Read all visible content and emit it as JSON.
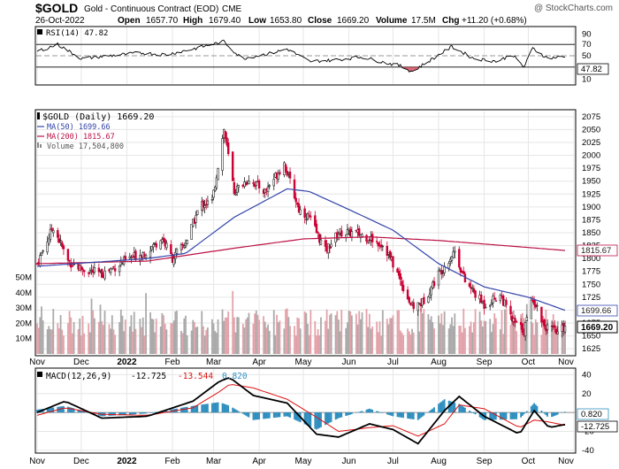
{
  "header": {
    "symbol": "$GOLD",
    "description": "Gold - Continuous Contract (EOD)",
    "exchange": "CME",
    "watermark": "@ StockCharts.com",
    "date": "26-Oct-2022",
    "quote": {
      "open_label": "Open",
      "open": "1657.70",
      "high_label": "High",
      "high": "1679.40",
      "low_label": "Low",
      "low": "1653.80",
      "close_label": "Close",
      "close": "1669.20",
      "volume_label": "Volume",
      "volume": "17.5M",
      "chg_label": "Chg",
      "chg": "+11.20 (+0.68%)"
    }
  },
  "colors": {
    "up": "#222222",
    "down": "#cc0033",
    "ma50": "#3344aa",
    "ma200": "#bb1144",
    "vol_up": "#aaaaaa",
    "vol_down": "#e3a3aa",
    "macd": "#000000",
    "signal": "#dd1111",
    "hist": "#2f8fbf",
    "rsi": "#000000",
    "rsi_fill": "#cc3344"
  },
  "rsi_panel": {
    "legend": "RSI(14) 47.82",
    "value_box": "47.82",
    "ticks": [
      "90",
      "70",
      "50",
      "30",
      "10"
    ]
  },
  "price_panel": {
    "legend_title": "$GOLD (Daily) 1669.20",
    "legend_ma50": "MA(50) 1699.66",
    "legend_ma200": "MA(200) 1815.67",
    "legend_volume": "Volume 17,504,800",
    "price_ticks": [
      "2075",
      "2050",
      "2025",
      "2000",
      "1975",
      "1950",
      "1925",
      "1900",
      "1875",
      "1850",
      "1825",
      "1800",
      "1775",
      "1750",
      "1725",
      "1700",
      "1675",
      "1650",
      "1625"
    ],
    "volume_ticks": [
      "50M",
      "40M",
      "30M",
      "20M",
      "10M"
    ],
    "label_ma200": "1815.67",
    "label_ma50": "1699.66",
    "label_close": "1669.20"
  },
  "macd_panel": {
    "legend_name": "MACD(12,26,9)",
    "legend_macd": "-12.725",
    "legend_signal": "-13.544",
    "legend_hist": "0.820",
    "ticks": [
      "40",
      "20",
      "0",
      "-20",
      "-40"
    ],
    "label_hist": "0.820",
    "label_macd": "-12.725"
  },
  "x_axis": {
    "months": [
      "Nov",
      "Dec",
      "2022",
      "Feb",
      "Mar",
      "Apr",
      "May",
      "Jun",
      "Jul",
      "Aug",
      "Sep",
      "Oct",
      "Nov"
    ]
  },
  "chart_data": {
    "type": "candlestick",
    "title": "$GOLD Gold - Continuous Contract (EOD) CME",
    "date_range": [
      "2021-11-01",
      "2022-10-26"
    ],
    "last_bar": {
      "date": "2022-10-26",
      "open": 1657.7,
      "high": 1679.4,
      "low": 1653.8,
      "close": 1669.2,
      "volume": 17504800,
      "change": 11.2,
      "change_pct": 0.68
    },
    "price_ylim": [
      1615,
      2085
    ],
    "close_path": {
      "dates": [
        "2021-11-01",
        "2021-11-12",
        "2021-11-22",
        "2021-12-01",
        "2021-12-15",
        "2022-01-03",
        "2022-01-15",
        "2022-01-25",
        "2022-02-01",
        "2022-02-10",
        "2022-02-20",
        "2022-02-28",
        "2022-03-08",
        "2022-03-15",
        "2022-03-25",
        "2022-04-05",
        "2022-04-18",
        "2022-04-28",
        "2022-05-05",
        "2022-05-16",
        "2022-05-25",
        "2022-06-05",
        "2022-06-15",
        "2022-06-25",
        "2022-07-05",
        "2022-07-14",
        "2022-07-21",
        "2022-08-01",
        "2022-08-12",
        "2022-08-19",
        "2022-09-01",
        "2022-09-12",
        "2022-09-20",
        "2022-09-28",
        "2022-10-04",
        "2022-10-12",
        "2022-10-21",
        "2022-10-26"
      ],
      "close": [
        1790,
        1862,
        1795,
        1780,
        1770,
        1800,
        1815,
        1840,
        1800,
        1830,
        1905,
        1910,
        2050,
        1930,
        1955,
        1930,
        1985,
        1895,
        1880,
        1815,
        1850,
        1850,
        1840,
        1825,
        1765,
        1705,
        1715,
        1770,
        1815,
        1755,
        1710,
        1730,
        1680,
        1660,
        1725,
        1670,
        1655,
        1669
      ]
    },
    "ma50": {
      "dates": [
        "2021-11-01",
        "2022-01-15",
        "2022-02-10",
        "2022-03-15",
        "2022-04-20",
        "2022-05-05",
        "2022-06-01",
        "2022-07-01",
        "2022-08-01",
        "2022-09-01",
        "2022-10-01",
        "2022-10-26"
      ],
      "values": [
        1785,
        1800,
        1810,
        1880,
        1935,
        1930,
        1895,
        1855,
        1790,
        1745,
        1725,
        1699.66
      ]
    },
    "ma200": {
      "dates": [
        "2021-11-01",
        "2022-01-15",
        "2022-03-15",
        "2022-05-01",
        "2022-06-15",
        "2022-08-01",
        "2022-09-15",
        "2022-10-26"
      ],
      "values": [
        1790,
        1795,
        1820,
        1838,
        1842,
        1835,
        1825,
        1815.67
      ]
    },
    "volume_ylim": [
      0,
      55
    ],
    "volume_unit": "M",
    "volume_typical": [
      12,
      30
    ],
    "rsi": {
      "ylim": [
        0,
        100
      ],
      "levels": [
        70,
        30
      ],
      "dates": [
        "2021-11-01",
        "2021-11-15",
        "2021-12-01",
        "2021-12-20",
        "2022-01-10",
        "2022-01-28",
        "2022-02-15",
        "2022-03-08",
        "2022-03-20",
        "2022-04-10",
        "2022-04-20",
        "2022-05-05",
        "2022-05-20",
        "2022-06-10",
        "2022-06-25",
        "2022-07-05",
        "2022-07-14",
        "2022-07-25",
        "2022-08-10",
        "2022-08-25",
        "2022-09-10",
        "2022-09-20",
        "2022-09-28",
        "2022-10-04",
        "2022-10-14",
        "2022-10-26"
      ],
      "values": [
        58,
        70,
        45,
        50,
        55,
        52,
        62,
        75,
        45,
        55,
        62,
        40,
        42,
        48,
        38,
        33,
        22,
        40,
        66,
        45,
        40,
        52,
        30,
        63,
        46,
        47.82
      ]
    },
    "macd": {
      "ylim": [
        -42,
        46
      ],
      "dates": [
        "2021-11-01",
        "2021-11-20",
        "2021-12-15",
        "2022-01-15",
        "2022-02-15",
        "2022-03-05",
        "2022-03-12",
        "2022-03-28",
        "2022-04-20",
        "2022-05-10",
        "2022-05-25",
        "2022-06-15",
        "2022-07-01",
        "2022-07-18",
        "2022-08-05",
        "2022-08-15",
        "2022-09-01",
        "2022-09-25",
        "2022-10-05",
        "2022-10-15",
        "2022-10-26"
      ],
      "macd": [
        0,
        12,
        -6,
        -4,
        12,
        33,
        37,
        18,
        10,
        -23,
        -26,
        -12,
        -18,
        -33,
        2,
        17,
        -4,
        -23,
        2,
        -16,
        -12.725
      ],
      "signal": [
        -3,
        5,
        -2,
        -3,
        5,
        22,
        30,
        26,
        14,
        -5,
        -20,
        -16,
        -14,
        -25,
        -12,
        8,
        4,
        -16,
        -8,
        -10,
        -13.544
      ],
      "histogram_last": 0.82
    },
    "series": [
      {
        "name": "$GOLD (Daily) 1669.20"
      },
      {
        "name": "MA(50) 1699.66"
      },
      {
        "name": "MA(200) 1815.67"
      },
      {
        "name": "Volume 17,504,800"
      },
      {
        "name": "RSI(14) 47.82"
      },
      {
        "name": "MACD(12,26,9) -12.725, -13.544, 0.820"
      }
    ],
    "grid": true,
    "legend_placement": "top-left"
  }
}
